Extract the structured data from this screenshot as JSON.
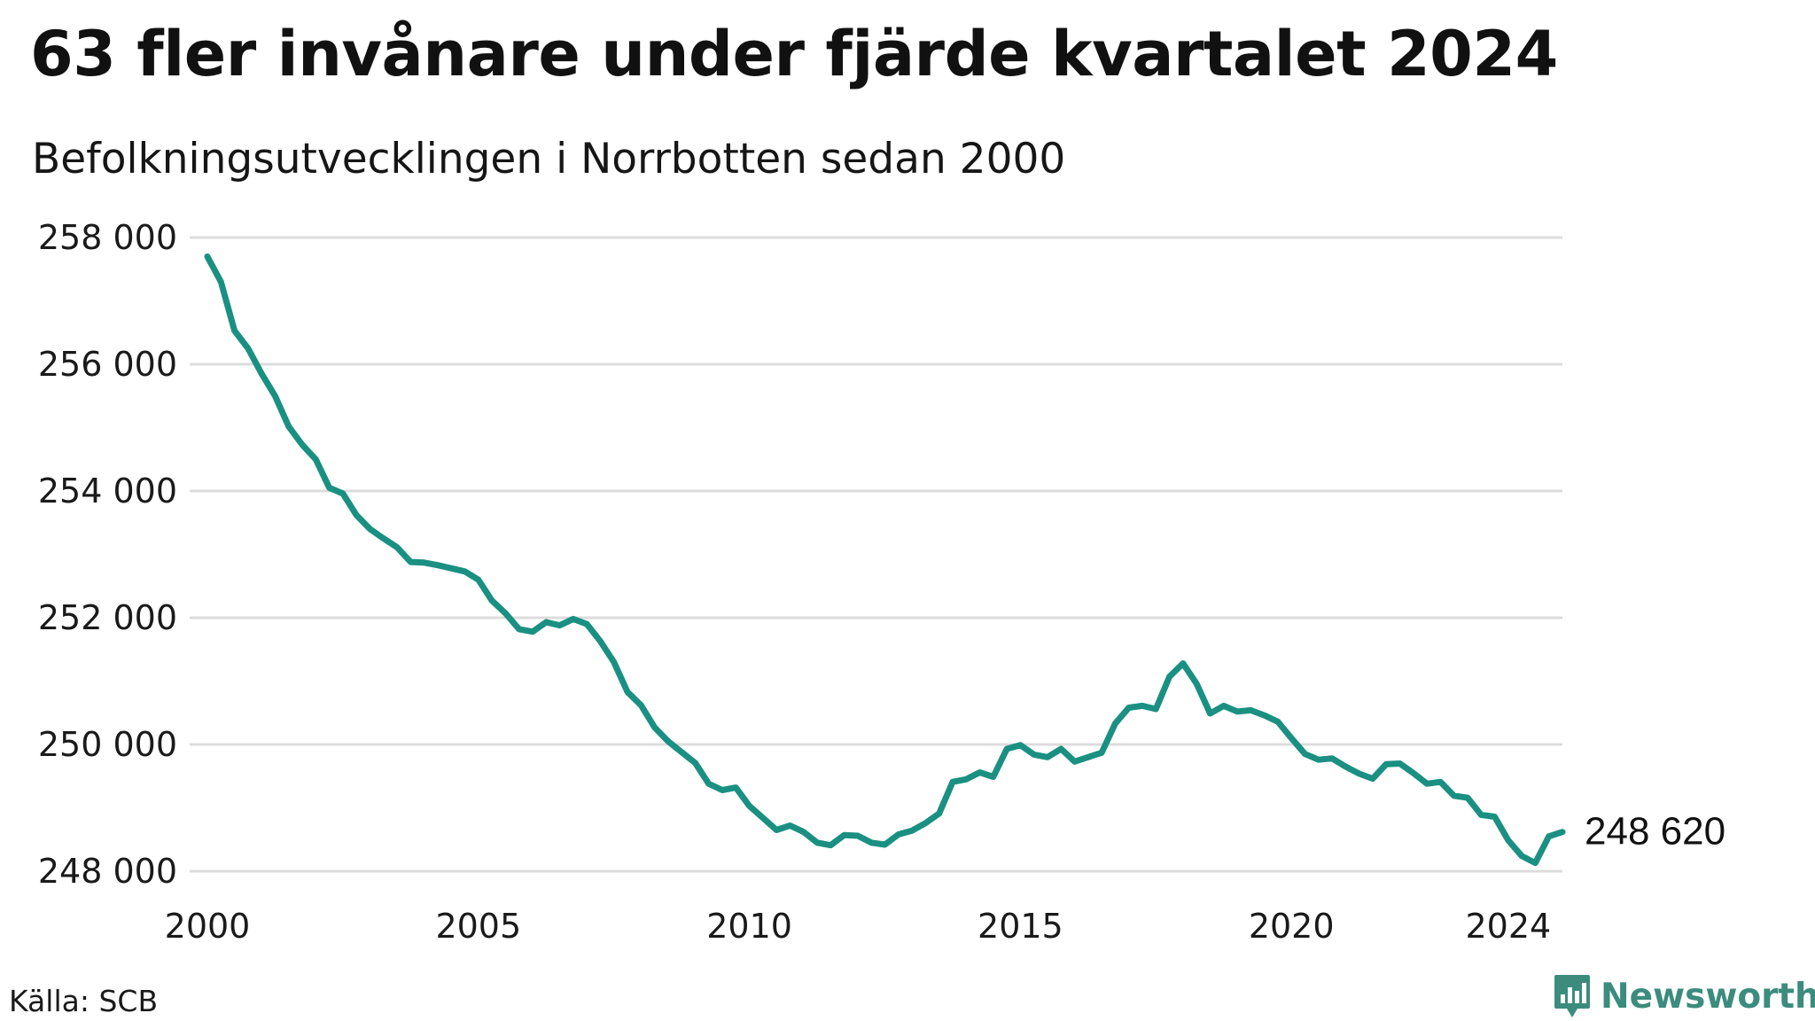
{
  "title": "63 fler invånare under fjärde kvartalet 2024",
  "subtitle": "Befolkningsutvecklingen i Norrbotten sedan 2000",
  "source": "Källa: SCB",
  "brand": {
    "name": "Newsworthy",
    "icon": "newsworthy-logo-icon",
    "color": "#3b8c7d"
  },
  "chart_data": {
    "type": "line",
    "title": "63 fler invånare under fjärde kvartalet 2024",
    "subtitle": "Befolkningsutvecklingen i Norrbotten sedan 2000",
    "xlabel": "",
    "ylabel": "",
    "xlim": [
      2000.0,
      2025.0
    ],
    "ylim": [
      248000,
      258000
    ],
    "grid": true,
    "line_color": "#1a9082",
    "grid_color": "#dcdcdc",
    "x_ticks": [
      2000,
      2005,
      2010,
      2015,
      2020,
      2024
    ],
    "x_tick_labels": [
      "2000",
      "2005",
      "2010",
      "2015",
      "2020",
      "2024"
    ],
    "y_ticks": [
      248000,
      250000,
      252000,
      254000,
      256000,
      258000
    ],
    "y_tick_labels": [
      "248 000",
      "250 000",
      "252 000",
      "254 000",
      "256 000",
      "258 000"
    ],
    "end_label": "248 620",
    "series": [
      {
        "x": [
          2000.0,
          2000.25,
          2000.5,
          2000.75,
          2001.0,
          2001.25,
          2001.5,
          2001.75,
          2002.0,
          2002.25,
          2002.5,
          2002.75,
          2003.0,
          2003.25,
          2003.5,
          2003.75,
          2004.0,
          2004.25,
          2004.5,
          2004.75,
          2005.0,
          2005.25,
          2005.5,
          2005.75,
          2006.0,
          2006.25,
          2006.5,
          2006.75,
          2007.0,
          2007.25,
          2007.5,
          2007.75,
          2008.0,
          2008.25,
          2008.5,
          2008.75,
          2009.0,
          2009.25,
          2009.5,
          2009.75,
          2010.0,
          2010.25,
          2010.5,
          2010.75,
          2011.0,
          2011.25,
          2011.5,
          2011.75,
          2012.0,
          2012.25,
          2012.5,
          2012.75,
          2013.0,
          2013.25,
          2013.5,
          2013.75,
          2014.0,
          2014.25,
          2014.5,
          2014.75,
          2015.0,
          2015.25,
          2015.5,
          2015.75,
          2016.0,
          2016.25,
          2016.5,
          2016.75,
          2017.0,
          2017.25,
          2017.5,
          2017.75,
          2018.0,
          2018.25,
          2018.5,
          2018.75,
          2019.0,
          2019.25,
          2019.5,
          2019.75,
          2020.0,
          2020.25,
          2020.5,
          2020.75,
          2021.0,
          2021.25,
          2021.5,
          2021.75,
          2022.0,
          2022.25,
          2022.5,
          2022.75,
          2023.0,
          2023.25,
          2023.5,
          2023.75,
          2024.0,
          2024.25,
          2024.5,
          2024.75,
          2025.0
        ],
        "values": [
          257700,
          257300,
          256530,
          256250,
          255850,
          255500,
          255020,
          254730,
          254500,
          254050,
          253960,
          253620,
          253400,
          253250,
          253110,
          252880,
          252870,
          252830,
          252780,
          252730,
          252600,
          252270,
          252070,
          251820,
          251780,
          251930,
          251880,
          251980,
          251900,
          251630,
          251300,
          250830,
          250620,
          250270,
          250050,
          249880,
          249710,
          249380,
          249280,
          249320,
          249030,
          248840,
          248650,
          248720,
          248620,
          248450,
          248410,
          248570,
          248560,
          248450,
          248420,
          248580,
          248640,
          248760,
          248910,
          249410,
          249450,
          249560,
          249490,
          249930,
          249990,
          249840,
          249800,
          249930,
          249730,
          249800,
          249870,
          250330,
          250580,
          250610,
          250560,
          251070,
          251280,
          250960,
          250490,
          250610,
          250520,
          250540,
          250460,
          250360,
          250100,
          249850,
          249760,
          249780,
          249650,
          249540,
          249460,
          249690,
          249700,
          249550,
          249380,
          249410,
          249190,
          249160,
          248890,
          248860,
          248490,
          248240,
          248130,
          248550,
          248620
        ]
      }
    ]
  }
}
